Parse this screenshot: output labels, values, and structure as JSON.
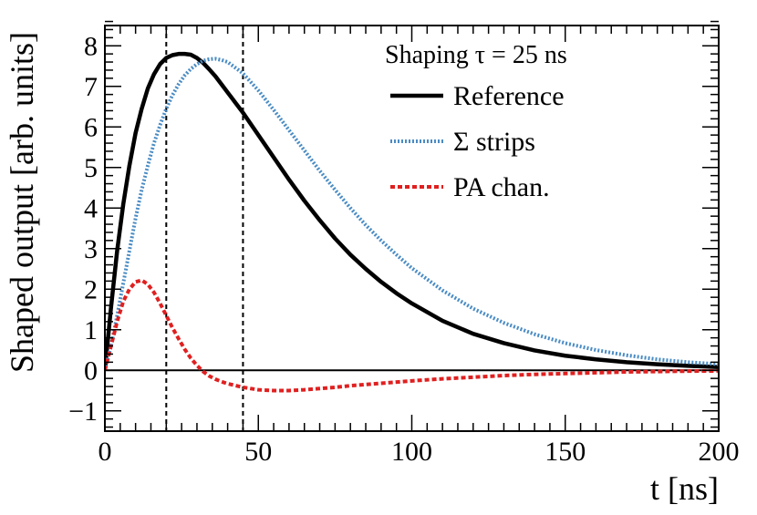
{
  "chart_data": {
    "type": "line",
    "title": "",
    "xlabel": "t [ns]",
    "ylabel": "Shaped output [arb. units]",
    "xlim": [
      0,
      200
    ],
    "ylim": [
      -1.5,
      8.5
    ],
    "xticks": [
      0,
      50,
      100,
      150,
      200
    ],
    "xtick_labels": [
      "0",
      "50",
      "100",
      "150",
      "200"
    ],
    "yticks": [
      -1,
      0,
      1,
      2,
      3,
      4,
      5,
      6,
      7,
      8
    ],
    "ytick_labels": [
      "−1",
      "0",
      "1",
      "2",
      "3",
      "4",
      "5",
      "6",
      "7",
      "8"
    ],
    "grid": false,
    "legend_position": "top-right",
    "legend_title": "Shaping τ = 25 ns",
    "zero_line": 0,
    "vertical_lines": [
      20,
      45
    ],
    "series": [
      {
        "name": "Reference",
        "color": "#000000",
        "style": "solid",
        "x": [
          0,
          2,
          4,
          6,
          8,
          10,
          12,
          14,
          16,
          18,
          20,
          22,
          24,
          26,
          28,
          30,
          32,
          34,
          36,
          38,
          40,
          45,
          50,
          55,
          60,
          65,
          70,
          75,
          80,
          85,
          90,
          95,
          100,
          110,
          120,
          130,
          140,
          150,
          160,
          170,
          180,
          190,
          200
        ],
        "y": [
          0,
          1.55,
          2.95,
          4.1,
          5.05,
          5.85,
          6.45,
          6.95,
          7.3,
          7.55,
          7.7,
          7.77,
          7.8,
          7.8,
          7.78,
          7.7,
          7.58,
          7.42,
          7.25,
          7.05,
          6.85,
          6.35,
          5.8,
          5.25,
          4.7,
          4.18,
          3.7,
          3.25,
          2.85,
          2.5,
          2.18,
          1.9,
          1.65,
          1.22,
          0.9,
          0.67,
          0.49,
          0.36,
          0.27,
          0.2,
          0.15,
          0.11,
          0.08
        ]
      },
      {
        "name": "Σ strips",
        "color": "#4a8cc4",
        "style": "dotted",
        "x": [
          0,
          2,
          4,
          6,
          8,
          10,
          12,
          14,
          16,
          18,
          20,
          22,
          24,
          26,
          28,
          30,
          32,
          34,
          36,
          38,
          40,
          45,
          50,
          55,
          60,
          65,
          70,
          75,
          80,
          85,
          90,
          95,
          100,
          110,
          120,
          130,
          140,
          150,
          160,
          170,
          180,
          190,
          200
        ],
        "y": [
          0,
          0.6,
          1.35,
          2.15,
          2.95,
          3.75,
          4.45,
          5.05,
          5.6,
          6.05,
          6.45,
          6.78,
          7.05,
          7.27,
          7.43,
          7.55,
          7.63,
          7.67,
          7.68,
          7.65,
          7.6,
          7.32,
          6.9,
          6.42,
          5.92,
          5.42,
          4.92,
          4.45,
          4.0,
          3.58,
          3.2,
          2.85,
          2.52,
          1.97,
          1.52,
          1.17,
          0.89,
          0.67,
          0.5,
          0.37,
          0.27,
          0.2,
          0.15
        ]
      },
      {
        "name": "PA chan.",
        "color": "#e02020",
        "style": "dashed",
        "x": [
          0,
          2,
          4,
          6,
          8,
          10,
          12,
          14,
          16,
          18,
          20,
          22,
          24,
          26,
          28,
          30,
          32,
          34,
          36,
          38,
          40,
          45,
          50,
          55,
          60,
          65,
          70,
          75,
          80,
          90,
          100,
          110,
          120,
          130,
          140,
          150,
          160,
          170,
          180,
          190,
          200
        ],
        "y": [
          0,
          0.6,
          1.2,
          1.7,
          2.0,
          2.18,
          2.22,
          2.12,
          1.92,
          1.65,
          1.35,
          1.05,
          0.78,
          0.52,
          0.3,
          0.12,
          -0.03,
          -0.14,
          -0.22,
          -0.28,
          -0.33,
          -0.42,
          -0.48,
          -0.5,
          -0.5,
          -0.48,
          -0.45,
          -0.42,
          -0.38,
          -0.32,
          -0.26,
          -0.21,
          -0.17,
          -0.13,
          -0.1,
          -0.08,
          -0.06,
          -0.04,
          -0.03,
          -0.02,
          -0.015
        ]
      }
    ]
  }
}
